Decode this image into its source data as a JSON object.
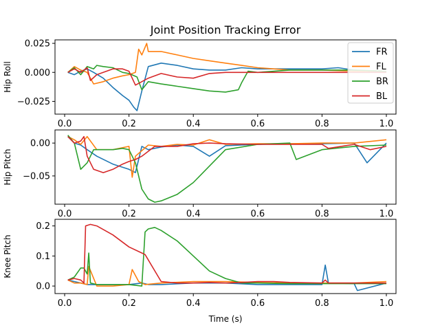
{
  "chart_data": [
    {
      "type": "line",
      "title": "Joint Position Tracking Error",
      "xlabel": "",
      "ylabel": "Hip Roll",
      "xlim": [
        -0.03,
        1.03
      ],
      "ylim": [
        -0.036,
        0.028
      ],
      "xticks": [
        0.0,
        0.2,
        0.4,
        0.6,
        0.8,
        1.0
      ],
      "xtick_labels": [
        "0.0",
        "0.2",
        "0.4",
        "0.6",
        "0.8",
        "1.0"
      ],
      "yticks": [
        -0.025,
        0.0,
        0.025
      ],
      "ytick_labels": [
        "−0.025",
        "0.000",
        "0.025"
      ],
      "legend": {
        "position": "top-right",
        "entries": [
          "FR",
          "FL",
          "BR",
          "BL"
        ]
      },
      "series": [
        {
          "name": "FR",
          "color": "#1f77b4",
          "x": [
            0.01,
            0.03,
            0.05,
            0.07,
            0.09,
            0.12,
            0.15,
            0.18,
            0.2,
            0.215,
            0.225,
            0.24,
            0.26,
            0.3,
            0.35,
            0.4,
            0.45,
            0.5,
            0.55,
            0.6,
            0.7,
            0.8,
            0.85,
            0.9,
            0.95,
            1.0
          ],
          "y": [
            0.0,
            -0.002,
            0.001,
            0.003,
            0.0,
            -0.005,
            -0.013,
            -0.02,
            -0.024,
            -0.03,
            -0.033,
            -0.016,
            0.005,
            0.008,
            0.006,
            0.003,
            0.002,
            0.002,
            0.004,
            0.003,
            0.003,
            0.003,
            0.004,
            0.002,
            0.001,
            0.0
          ]
        },
        {
          "name": "FL",
          "color": "#ff7f0e",
          "x": [
            0.01,
            0.03,
            0.05,
            0.07,
            0.09,
            0.12,
            0.15,
            0.18,
            0.2,
            0.22,
            0.23,
            0.24,
            0.255,
            0.26,
            0.3,
            0.35,
            0.4,
            0.45,
            0.5,
            0.55,
            0.6,
            0.7,
            0.8,
            0.9,
            1.0
          ],
          "y": [
            0.0,
            0.005,
            0.002,
            0.0,
            -0.01,
            -0.008,
            -0.005,
            -0.003,
            -0.002,
            0.0,
            0.02,
            0.015,
            0.025,
            0.018,
            0.018,
            0.015,
            0.012,
            0.01,
            0.008,
            0.006,
            0.004,
            0.002,
            0.002,
            0.001,
            0.001
          ]
        },
        {
          "name": "BR",
          "color": "#2ca02c",
          "x": [
            0.01,
            0.03,
            0.05,
            0.07,
            0.09,
            0.1,
            0.12,
            0.15,
            0.18,
            0.2,
            0.225,
            0.24,
            0.26,
            0.3,
            0.35,
            0.4,
            0.45,
            0.5,
            0.54,
            0.55,
            0.57,
            0.6,
            0.7,
            0.8,
            0.9,
            1.0
          ],
          "y": [
            0.0,
            0.004,
            -0.002,
            0.005,
            0.003,
            0.006,
            0.005,
            0.004,
            0.0,
            -0.001,
            -0.004,
            -0.015,
            -0.008,
            -0.01,
            -0.012,
            -0.014,
            -0.016,
            -0.017,
            -0.015,
            -0.009,
            0.001,
            0.0,
            0.002,
            0.002,
            0.002,
            0.001
          ]
        },
        {
          "name": "BL",
          "color": "#d62728",
          "x": [
            0.01,
            0.03,
            0.05,
            0.07,
            0.08,
            0.1,
            0.12,
            0.15,
            0.18,
            0.2,
            0.22,
            0.26,
            0.3,
            0.35,
            0.4,
            0.45,
            0.5,
            0.55,
            0.6,
            0.7,
            0.8,
            0.9,
            1.0
          ],
          "y": [
            0.0,
            0.003,
            0.0,
            0.004,
            -0.007,
            -0.002,
            0.0,
            0.003,
            0.003,
            0.001,
            -0.011,
            -0.005,
            -0.001,
            -0.004,
            -0.005,
            -0.001,
            0.0,
            0.0,
            0.0,
            0.0,
            0.0,
            0.0,
            0.0
          ]
        }
      ]
    },
    {
      "type": "line",
      "title": "",
      "xlabel": "",
      "ylabel": "Hip Pitch",
      "xlim": [
        -0.03,
        1.03
      ],
      "ylim": [
        -0.093,
        0.02
      ],
      "xticks": [
        0.0,
        0.2,
        0.4,
        0.6,
        0.8,
        1.0
      ],
      "xtick_labels": [
        "0.0",
        "0.2",
        "0.4",
        "0.6",
        "0.8",
        "1.0"
      ],
      "yticks": [
        -0.05,
        0.0
      ],
      "ytick_labels": [
        "−0.05",
        "0.00"
      ],
      "series": [
        {
          "name": "FR",
          "color": "#1f77b4",
          "x": [
            0.01,
            0.03,
            0.05,
            0.07,
            0.1,
            0.15,
            0.2,
            0.22,
            0.24,
            0.26,
            0.3,
            0.35,
            0.4,
            0.45,
            0.5,
            0.6,
            0.7,
            0.8,
            0.9,
            0.94,
            1.0
          ],
          "y": [
            0.01,
            0.0,
            -0.003,
            -0.01,
            -0.02,
            -0.032,
            -0.04,
            -0.045,
            -0.005,
            -0.01,
            -0.006,
            -0.003,
            -0.005,
            -0.02,
            -0.004,
            -0.002,
            -0.001,
            -0.001,
            0.0,
            -0.03,
            0.0
          ]
        },
        {
          "name": "FL",
          "color": "#ff7f0e",
          "x": [
            0.01,
            0.03,
            0.05,
            0.07,
            0.1,
            0.15,
            0.2,
            0.21,
            0.22,
            0.26,
            0.3,
            0.35,
            0.4,
            0.45,
            0.5,
            0.6,
            0.7,
            0.8,
            0.9,
            1.0
          ],
          "y": [
            0.01,
            0.005,
            -0.002,
            0.01,
            -0.01,
            -0.01,
            -0.005,
            -0.052,
            -0.02,
            -0.003,
            -0.005,
            -0.002,
            -0.003,
            0.005,
            -0.002,
            -0.001,
            -0.001,
            0.0,
            0.0,
            0.005
          ]
        },
        {
          "name": "BR",
          "color": "#2ca02c",
          "x": [
            0.01,
            0.03,
            0.05,
            0.07,
            0.09,
            0.12,
            0.15,
            0.18,
            0.2,
            0.22,
            0.24,
            0.26,
            0.28,
            0.3,
            0.35,
            0.4,
            0.45,
            0.5,
            0.6,
            0.7,
            0.72,
            0.8,
            0.9,
            1.0
          ],
          "y": [
            0.012,
            0.0,
            -0.04,
            -0.03,
            -0.01,
            -0.01,
            -0.01,
            -0.008,
            -0.01,
            -0.03,
            -0.07,
            -0.085,
            -0.09,
            -0.088,
            -0.078,
            -0.06,
            -0.035,
            -0.01,
            -0.002,
            0.0,
            -0.025,
            -0.01,
            -0.005,
            -0.003
          ]
        },
        {
          "name": "BL",
          "color": "#d62728",
          "x": [
            0.01,
            0.03,
            0.05,
            0.06,
            0.07,
            0.09,
            0.12,
            0.15,
            0.18,
            0.2,
            0.22,
            0.24,
            0.28,
            0.35,
            0.4,
            0.45,
            0.5,
            0.6,
            0.7,
            0.8,
            0.82,
            0.9,
            0.95,
            1.0
          ],
          "y": [
            0.01,
            0.0,
            0.003,
            0.01,
            -0.02,
            -0.04,
            -0.045,
            -0.04,
            -0.032,
            -0.028,
            -0.025,
            -0.02,
            -0.005,
            -0.005,
            -0.001,
            0.0,
            -0.001,
            -0.002,
            -0.002,
            -0.002,
            -0.008,
            -0.002,
            -0.01,
            -0.005
          ]
        }
      ]
    },
    {
      "type": "line",
      "title": "",
      "xlabel": "Time (s)",
      "ylabel": "Knee Pitch",
      "xlim": [
        -0.03,
        1.03
      ],
      "ylim": [
        -0.025,
        0.222
      ],
      "xticks": [
        0.0,
        0.2,
        0.4,
        0.6,
        0.8,
        1.0
      ],
      "xtick_labels": [
        "0.0",
        "0.2",
        "0.4",
        "0.6",
        "0.8",
        "1.0"
      ],
      "yticks": [
        0.0,
        0.1,
        0.2
      ],
      "ytick_labels": [
        "0.0",
        "0.1",
        "0.2"
      ],
      "series": [
        {
          "name": "FR",
          "color": "#1f77b4",
          "x": [
            0.01,
            0.03,
            0.05,
            0.07,
            0.1,
            0.15,
            0.2,
            0.24,
            0.26,
            0.3,
            0.4,
            0.5,
            0.6,
            0.7,
            0.8,
            0.81,
            0.82,
            0.9,
            0.91,
            1.0
          ],
          "y": [
            0.02,
            0.015,
            0.01,
            0.005,
            0.005,
            0.005,
            0.005,
            0.01,
            0.005,
            0.005,
            0.01,
            0.01,
            0.005,
            0.005,
            0.005,
            0.07,
            0.01,
            0.008,
            -0.015,
            0.01
          ]
        },
        {
          "name": "FL",
          "color": "#ff7f0e",
          "x": [
            0.01,
            0.03,
            0.05,
            0.07,
            0.075,
            0.1,
            0.15,
            0.2,
            0.21,
            0.23,
            0.25,
            0.3,
            0.4,
            0.5,
            0.6,
            0.7,
            0.8,
            0.9,
            1.0
          ],
          "y": [
            0.02,
            0.01,
            0.01,
            0.005,
            0.065,
            0.0,
            0.0,
            0.005,
            0.055,
            0.015,
            0.005,
            0.01,
            0.015,
            0.015,
            0.012,
            0.01,
            0.01,
            0.01,
            0.015
          ]
        },
        {
          "name": "BR",
          "color": "#2ca02c",
          "x": [
            0.01,
            0.03,
            0.05,
            0.06,
            0.07,
            0.075,
            0.08,
            0.1,
            0.15,
            0.2,
            0.24,
            0.25,
            0.26,
            0.28,
            0.3,
            0.35,
            0.4,
            0.45,
            0.5,
            0.55,
            0.6,
            0.7,
            0.8,
            0.9,
            1.0
          ],
          "y": [
            0.02,
            0.03,
            0.06,
            0.06,
            0.04,
            0.11,
            0.01,
            0.005,
            0.005,
            0.005,
            0.0,
            0.18,
            0.19,
            0.195,
            0.185,
            0.15,
            0.1,
            0.05,
            0.025,
            0.01,
            0.01,
            0.008,
            0.008,
            0.008,
            0.008
          ]
        },
        {
          "name": "BL",
          "color": "#d62728",
          "x": [
            0.01,
            0.03,
            0.05,
            0.06,
            0.065,
            0.08,
            0.1,
            0.15,
            0.2,
            0.24,
            0.25,
            0.3,
            0.35,
            0.4,
            0.45,
            0.5,
            0.55,
            0.6,
            0.65,
            0.7,
            0.8,
            0.81,
            0.82,
            0.9,
            1.0
          ],
          "y": [
            0.02,
            0.025,
            0.02,
            0.01,
            0.2,
            0.205,
            0.2,
            0.17,
            0.13,
            0.11,
            0.105,
            0.015,
            0.01,
            0.01,
            0.012,
            0.01,
            0.012,
            0.015,
            0.015,
            0.012,
            0.01,
            0.02,
            0.01,
            0.01,
            0.01
          ]
        }
      ]
    }
  ]
}
